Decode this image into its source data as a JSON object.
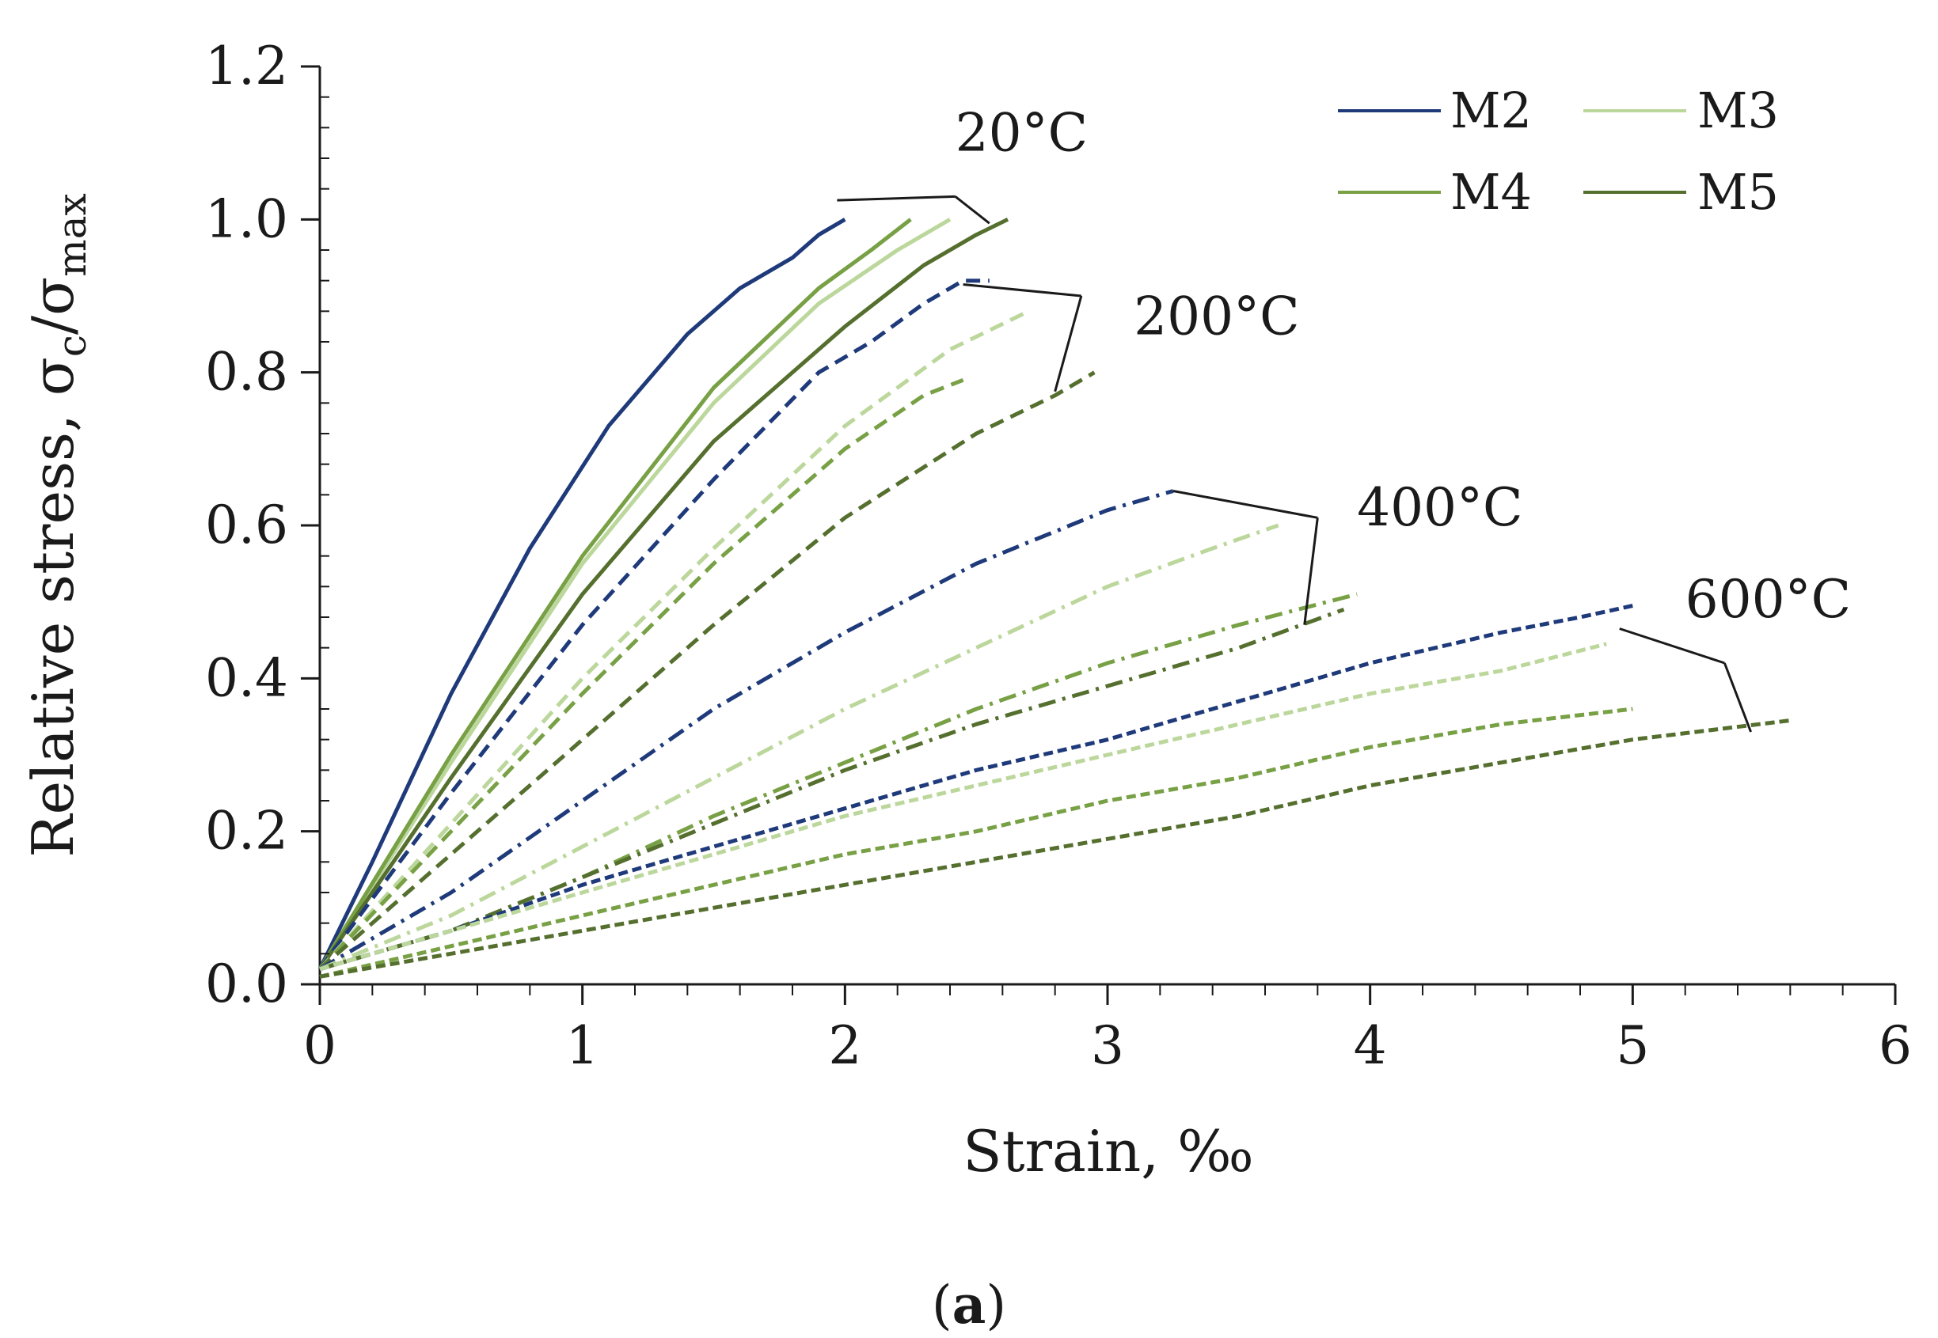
{
  "chart_data": {
    "type": "line",
    "title": "",
    "xlabel": "Strain, ‰",
    "ylabel": "Relative stress, σc/σmax",
    "ylabel_parts": {
      "main": "Relative stress, σ",
      "sub1": "c",
      "slash": "/σ",
      "sub2": "max"
    },
    "xlim": [
      0,
      6
    ],
    "ylim": [
      0,
      1.2
    ],
    "x_ticks": [
      "0",
      "1",
      "2",
      "3",
      "4",
      "5",
      "6"
    ],
    "y_ticks": [
      "0.0",
      "0.2",
      "0.4",
      "0.6",
      "0.8",
      "1.0",
      "1.2"
    ],
    "grid": false,
    "legend_position": "top-right",
    "legend": [
      {
        "name": "M2",
        "color": "#1f3a7a"
      },
      {
        "name": "M3",
        "color": "#bcd79c"
      },
      {
        "name": "M4",
        "color": "#78a045"
      },
      {
        "name": "M5",
        "color": "#556f2e"
      }
    ],
    "caption_parts": {
      "open": "(",
      "letter": "a",
      "close": ")"
    },
    "temperature_labels": [
      "20°C",
      "200°C",
      "400°C",
      "600°C"
    ],
    "series": [
      {
        "name": "M2 20°C",
        "mix": "M2",
        "temperature": "20°C",
        "style": "solid",
        "color": "#1f3a7a",
        "points": [
          [
            0,
            0.02
          ],
          [
            0.2,
            0.16
          ],
          [
            0.5,
            0.38
          ],
          [
            0.8,
            0.57
          ],
          [
            1.1,
            0.73
          ],
          [
            1.4,
            0.85
          ],
          [
            1.6,
            0.91
          ],
          [
            1.8,
            0.95
          ],
          [
            1.9,
            0.98
          ],
          [
            2.0,
            1.0
          ]
        ]
      },
      {
        "name": "M3 20°C",
        "mix": "M3",
        "temperature": "20°C",
        "style": "solid",
        "color": "#bcd79c",
        "points": [
          [
            0,
            0.02
          ],
          [
            0.5,
            0.29
          ],
          [
            1.0,
            0.55
          ],
          [
            1.5,
            0.76
          ],
          [
            1.9,
            0.89
          ],
          [
            2.2,
            0.96
          ],
          [
            2.4,
            1.0
          ]
        ]
      },
      {
        "name": "M4 20°C",
        "mix": "M4",
        "temperature": "20°C",
        "style": "solid",
        "color": "#78a045",
        "points": [
          [
            0,
            0.02
          ],
          [
            0.5,
            0.3
          ],
          [
            1.0,
            0.56
          ],
          [
            1.5,
            0.78
          ],
          [
            1.9,
            0.91
          ],
          [
            2.1,
            0.96
          ],
          [
            2.25,
            1.0
          ]
        ]
      },
      {
        "name": "M5 20°C",
        "mix": "M5",
        "temperature": "20°C",
        "style": "solid",
        "color": "#556f2e",
        "points": [
          [
            0,
            0.02
          ],
          [
            0.5,
            0.27
          ],
          [
            1.0,
            0.51
          ],
          [
            1.5,
            0.71
          ],
          [
            2.0,
            0.86
          ],
          [
            2.3,
            0.94
          ],
          [
            2.5,
            0.98
          ],
          [
            2.62,
            1.0
          ]
        ]
      },
      {
        "name": "M2 200°C",
        "mix": "M2",
        "temperature": "200°C",
        "style": "dash",
        "color": "#1f3a7a",
        "points": [
          [
            0,
            0.02
          ],
          [
            0.5,
            0.25
          ],
          [
            1.0,
            0.47
          ],
          [
            1.5,
            0.66
          ],
          [
            1.9,
            0.8
          ],
          [
            2.1,
            0.84
          ],
          [
            2.3,
            0.89
          ],
          [
            2.45,
            0.92
          ],
          [
            2.55,
            0.92
          ]
        ]
      },
      {
        "name": "M3 200°C",
        "mix": "M3",
        "temperature": "200°C",
        "style": "dash",
        "color": "#bcd79c",
        "points": [
          [
            0,
            0.02
          ],
          [
            0.5,
            0.21
          ],
          [
            1.0,
            0.4
          ],
          [
            1.5,
            0.57
          ],
          [
            2.0,
            0.73
          ],
          [
            2.4,
            0.83
          ],
          [
            2.7,
            0.88
          ]
        ]
      },
      {
        "name": "M4 200°C",
        "mix": "M4",
        "temperature": "200°C",
        "style": "dash",
        "color": "#78a045",
        "points": [
          [
            0,
            0.02
          ],
          [
            0.5,
            0.2
          ],
          [
            1.0,
            0.38
          ],
          [
            1.5,
            0.55
          ],
          [
            2.0,
            0.7
          ],
          [
            2.3,
            0.77
          ],
          [
            2.45,
            0.79
          ]
        ]
      },
      {
        "name": "M5 200°C",
        "mix": "M5",
        "temperature": "200°C",
        "style": "dash",
        "color": "#556f2e",
        "points": [
          [
            0,
            0.02
          ],
          [
            0.5,
            0.17
          ],
          [
            1.0,
            0.32
          ],
          [
            1.5,
            0.47
          ],
          [
            2.0,
            0.61
          ],
          [
            2.5,
            0.72
          ],
          [
            2.8,
            0.77
          ],
          [
            2.95,
            0.8
          ]
        ]
      },
      {
        "name": "M2 400°C",
        "mix": "M2",
        "temperature": "400°C",
        "style": "dashdot",
        "color": "#1f3a7a",
        "points": [
          [
            0,
            0.02
          ],
          [
            0.5,
            0.12
          ],
          [
            1.0,
            0.24
          ],
          [
            1.5,
            0.36
          ],
          [
            2.0,
            0.46
          ],
          [
            2.5,
            0.55
          ],
          [
            3.0,
            0.62
          ],
          [
            3.25,
            0.645
          ]
        ]
      },
      {
        "name": "M3 400°C",
        "mix": "M3",
        "temperature": "400°C",
        "style": "dashdot",
        "color": "#bcd79c",
        "points": [
          [
            0,
            0.02
          ],
          [
            0.5,
            0.09
          ],
          [
            1.0,
            0.18
          ],
          [
            1.5,
            0.27
          ],
          [
            2.0,
            0.36
          ],
          [
            2.5,
            0.44
          ],
          [
            3.0,
            0.52
          ],
          [
            3.4,
            0.57
          ],
          [
            3.65,
            0.6
          ]
        ]
      },
      {
        "name": "M4 400°C",
        "mix": "M4",
        "temperature": "400°C",
        "style": "dashdot",
        "color": "#78a045",
        "points": [
          [
            0,
            0.02
          ],
          [
            0.5,
            0.07
          ],
          [
            1.0,
            0.14
          ],
          [
            1.5,
            0.22
          ],
          [
            2.0,
            0.29
          ],
          [
            2.5,
            0.36
          ],
          [
            3.0,
            0.42
          ],
          [
            3.5,
            0.47
          ],
          [
            3.95,
            0.51
          ]
        ]
      },
      {
        "name": "M5 400°C",
        "mix": "M5",
        "temperature": "400°C",
        "style": "dashdot",
        "color": "#556f2e",
        "points": [
          [
            0,
            0.02
          ],
          [
            0.5,
            0.07
          ],
          [
            1.0,
            0.14
          ],
          [
            1.5,
            0.21
          ],
          [
            2.0,
            0.28
          ],
          [
            2.5,
            0.34
          ],
          [
            3.0,
            0.39
          ],
          [
            3.5,
            0.44
          ],
          [
            3.9,
            0.49
          ]
        ]
      },
      {
        "name": "M2 600°C",
        "mix": "M2",
        "temperature": "600°C",
        "style": "shortdash",
        "color": "#1f3a7a",
        "points": [
          [
            0,
            0.02
          ],
          [
            0.5,
            0.07
          ],
          [
            1.0,
            0.13
          ],
          [
            1.5,
            0.18
          ],
          [
            2.0,
            0.23
          ],
          [
            2.5,
            0.28
          ],
          [
            3.0,
            0.32
          ],
          [
            3.5,
            0.37
          ],
          [
            4.0,
            0.42
          ],
          [
            4.5,
            0.46
          ],
          [
            4.8,
            0.48
          ],
          [
            5.0,
            0.495
          ]
        ]
      },
      {
        "name": "M3 600°C",
        "mix": "M3",
        "temperature": "600°C",
        "style": "shortdash",
        "color": "#bcd79c",
        "points": [
          [
            0,
            0.02
          ],
          [
            0.5,
            0.07
          ],
          [
            1.0,
            0.12
          ],
          [
            1.5,
            0.17
          ],
          [
            2.0,
            0.22
          ],
          [
            2.5,
            0.26
          ],
          [
            3.0,
            0.3
          ],
          [
            3.5,
            0.34
          ],
          [
            4.0,
            0.38
          ],
          [
            4.5,
            0.41
          ],
          [
            4.9,
            0.445
          ]
        ]
      },
      {
        "name": "M4 600°C",
        "mix": "M4",
        "temperature": "600°C",
        "style": "shortdash",
        "color": "#78a045",
        "points": [
          [
            0,
            0.01
          ],
          [
            0.5,
            0.05
          ],
          [
            1.0,
            0.09
          ],
          [
            1.5,
            0.13
          ],
          [
            2.0,
            0.17
          ],
          [
            2.5,
            0.2
          ],
          [
            3.0,
            0.24
          ],
          [
            3.5,
            0.27
          ],
          [
            4.0,
            0.31
          ],
          [
            4.5,
            0.34
          ],
          [
            5.0,
            0.36
          ]
        ]
      },
      {
        "name": "M5 600°C",
        "mix": "M5",
        "temperature": "600°C",
        "style": "shortdash",
        "color": "#556f2e",
        "points": [
          [
            0,
            0.01
          ],
          [
            0.5,
            0.04
          ],
          [
            1.0,
            0.07
          ],
          [
            1.5,
            0.1
          ],
          [
            2.0,
            0.13
          ],
          [
            2.5,
            0.16
          ],
          [
            3.0,
            0.19
          ],
          [
            3.5,
            0.22
          ],
          [
            4.0,
            0.26
          ],
          [
            4.5,
            0.29
          ],
          [
            5.0,
            0.32
          ],
          [
            5.6,
            0.345
          ]
        ]
      }
    ],
    "callouts": [
      {
        "label": "20°C",
        "text_at": [
          2.42,
          1.09
        ],
        "hub": [
          2.42,
          1.03
        ],
        "targets": [
          [
            1.97,
            1.025
          ],
          [
            2.55,
            0.995
          ]
        ]
      },
      {
        "label": "200°C",
        "text_at": [
          3.1,
          0.85
        ],
        "hub": [
          2.9,
          0.9
        ],
        "targets": [
          [
            2.45,
            0.915
          ],
          [
            2.8,
            0.775
          ]
        ]
      },
      {
        "label": "400°C",
        "text_at": [
          3.95,
          0.6
        ],
        "hub": [
          3.8,
          0.61
        ],
        "targets": [
          [
            3.25,
            0.645
          ],
          [
            3.75,
            0.47
          ]
        ]
      },
      {
        "label": "600°C",
        "text_at": [
          5.2,
          0.48
        ],
        "hub": [
          5.35,
          0.42
        ],
        "targets": [
          [
            4.95,
            0.465
          ],
          [
            5.45,
            0.33
          ]
        ]
      }
    ]
  }
}
